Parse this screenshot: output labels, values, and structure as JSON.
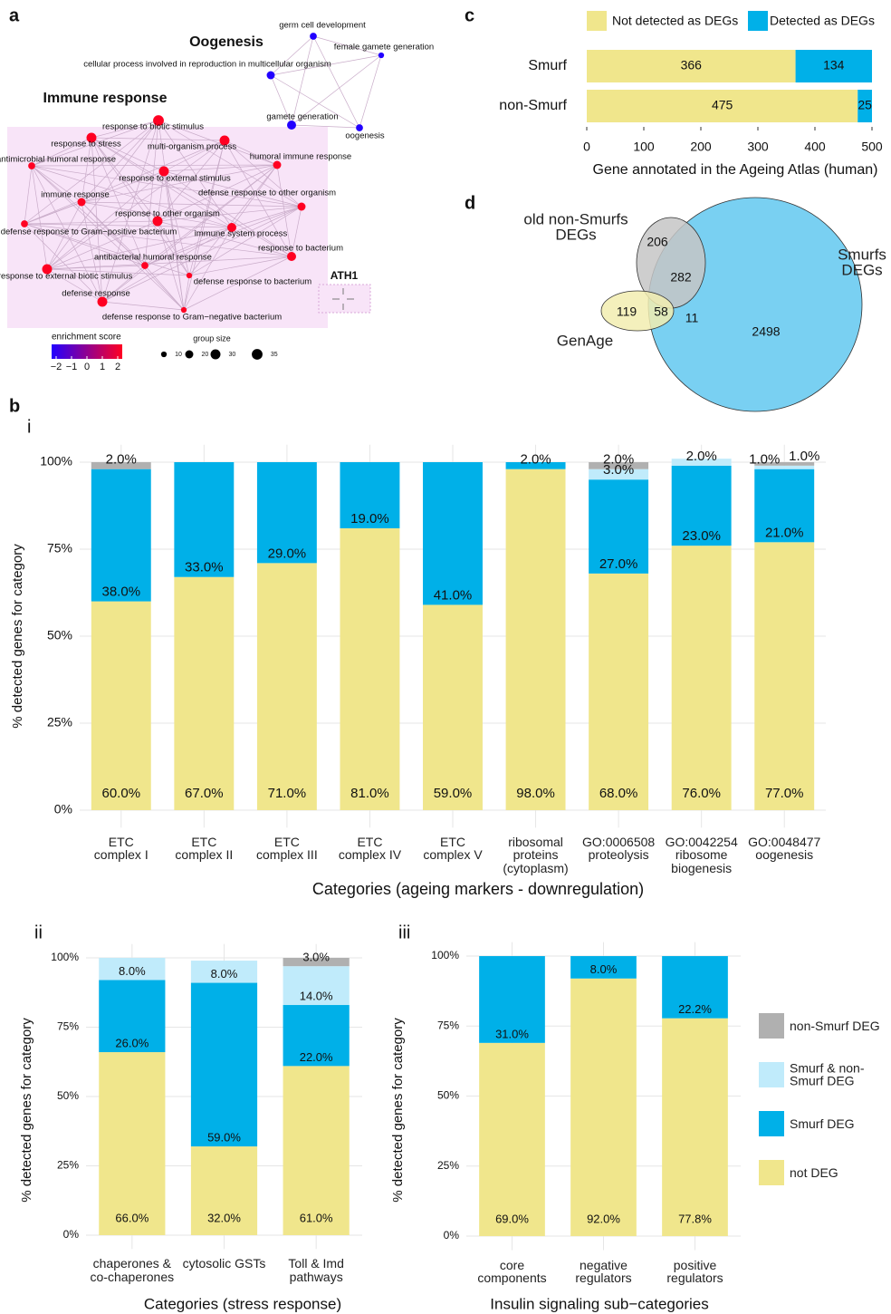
{
  "panel_group": "b",
  "chart_data": [
    {
      "type": "network",
      "panel": "a",
      "clusters": [
        "Oogenesis",
        "Immune response",
        "ATH1"
      ],
      "nodes": [
        {
          "label": "germ cell development",
          "score": -2,
          "size": 15
        },
        {
          "label": "female gamete generation",
          "score": -2,
          "size": 10
        },
        {
          "label": "cellular process involved in reproduction in multicellular organism",
          "score": -2,
          "size": 20
        },
        {
          "label": "gamete generation",
          "score": -2,
          "size": 25
        },
        {
          "label": "oogenesis",
          "score": -2,
          "size": 15
        },
        {
          "label": "response to biotic stimulus",
          "score": 2,
          "size": 35
        },
        {
          "label": "response to stress",
          "score": 2,
          "size": 30
        },
        {
          "label": "multi-organism process",
          "score": 2,
          "size": 30
        },
        {
          "label": "antimicrobial humoral response",
          "score": 2,
          "size": 15
        },
        {
          "label": "humoral immune response",
          "score": 2,
          "size": 20
        },
        {
          "label": "response to external stimulus",
          "score": 2,
          "size": 30
        },
        {
          "label": "immune response",
          "score": 2,
          "size": 20
        },
        {
          "label": "defense response to other organism",
          "score": 2,
          "size": 20
        },
        {
          "label": "response to other organism",
          "score": 2,
          "size": 30
        },
        {
          "label": "immune system process",
          "score": 2,
          "size": 25
        },
        {
          "label": "defense response to Gram−positive bacterium",
          "score": 2,
          "size": 15
        },
        {
          "label": "response to bacterium",
          "score": 2,
          "size": 25
        },
        {
          "label": "antibacterial humoral response",
          "score": 2,
          "size": 15
        },
        {
          "label": "response to external biotic stimulus",
          "score": 2,
          "size": 30
        },
        {
          "label": "defense response to bacterium",
          "score": 2,
          "size": 10
        },
        {
          "label": "defense response",
          "score": 2,
          "size": 30
        },
        {
          "label": "defense response to Gram−negative bacterium",
          "score": 2,
          "size": 10
        }
      ],
      "color_title": "enrichment score",
      "colorlim": [
        -2,
        2
      ],
      "colors": [
        "#2200ff",
        "#ff0022"
      ],
      "color_ticks": [
        {
          "value": -2,
          "label": "−2"
        },
        {
          "value": -1,
          "label": "−1"
        },
        0,
        1,
        2
      ],
      "size_title": "group size",
      "size_ticks": [
        10,
        20,
        30,
        35
      ]
    },
    {
      "type": "hbar_stacked",
      "panel": "c",
      "categories": [
        "Smurf",
        "non-Smurf"
      ],
      "series": [
        {
          "name": "Not detected as DEGs",
          "color": "#f0e68c",
          "values": [
            366,
            475
          ]
        },
        {
          "name": "Detected as DEGs",
          "color": "#00b0e8",
          "values": [
            134,
            25
          ]
        }
      ],
      "xlim": [
        0,
        500
      ],
      "xticks": [
        0,
        100,
        200,
        300,
        400,
        500
      ],
      "xlabel": "Gene annotated in the Ageing Atlas (human)",
      "legend": "top"
    },
    {
      "type": "venn",
      "panel": "d",
      "sets": [
        "old non-Smurfs\nDEGs",
        "Smurfs\nDEGs",
        "GenAge"
      ],
      "set_colors": [
        "#c6c6c6",
        "#62c8f0",
        "#f2edb0"
      ],
      "values": [
        206,
        282,
        119,
        58,
        11,
        2498
      ]
    },
    {
      "type": "stacked_bar",
      "panel": "i",
      "categories": [
        "ETC\ncomplex I",
        "ETC\ncomplex II",
        "ETC\ncomplex III",
        "ETC\ncomplex IV",
        "ETC\ncomplex V",
        "ribosomal\nproteins\n(cytoplasm)",
        "GO:0006508\nproteolysis",
        "GO:0042254\nribosome\nbiogenesis",
        "GO:0048477\noogenesis"
      ],
      "series": [
        {
          "color": "#f0e68c",
          "values": [
            60,
            67,
            71,
            81,
            59,
            98,
            68,
            76,
            77
          ],
          "value_labels": [
            "60.0%",
            "67.0%",
            "71.0%",
            "81.0%",
            "59.0%",
            "98.0%",
            "68.0%",
            "76.0%",
            "77.0%"
          ]
        },
        {
          "color": "#00b0e8",
          "values": [
            38,
            33,
            29,
            19,
            41,
            2,
            27,
            23,
            21
          ],
          "value_labels": [
            "38.0%",
            "33.0%",
            "29.0%",
            "19.0%",
            "41.0%",
            "2.0%",
            "27.0%",
            "23.0%",
            "21.0%"
          ]
        },
        {
          "color": "#c0ebfb",
          "values": [
            null,
            null,
            null,
            null,
            null,
            null,
            3,
            2,
            1
          ],
          "value_labels": [
            null,
            null,
            null,
            null,
            null,
            null,
            "3.0%",
            "2.0%",
            "1.0%"
          ]
        },
        {
          "color": "#b0b0b0",
          "values": [
            2,
            null,
            null,
            null,
            null,
            null,
            2,
            null,
            1
          ],
          "value_labels": [
            "2.0%",
            null,
            null,
            null,
            null,
            null,
            "2.0%",
            null,
            "1.0%"
          ]
        }
      ],
      "ylim": [
        -5,
        105
      ],
      "yticks": [
        {
          "value": 0,
          "label": "0%"
        },
        {
          "value": 25,
          "label": "25%"
        },
        {
          "value": 50,
          "label": "50%"
        },
        {
          "value": 75,
          "label": "75%"
        },
        {
          "value": 100,
          "label": "100%"
        }
      ],
      "ylabel": "% detected genes for category",
      "xlabel": "Categories (ageing markers - downregulation)",
      "grid": true
    },
    {
      "type": "stacked_bar",
      "panel": "ii",
      "categories": [
        "chaperones &\nco-chaperones",
        "cytosolic GSTs",
        "Toll & Imd\npathways"
      ],
      "series": [
        {
          "color": "#f0e68c",
          "values": [
            66,
            32,
            61
          ],
          "value_labels": [
            "66.0%",
            "32.0%",
            "61.0%"
          ]
        },
        {
          "color": "#00b0e8",
          "values": [
            26,
            59,
            22
          ],
          "value_labels": [
            "26.0%",
            "59.0%",
            "22.0%"
          ]
        },
        {
          "color": "#c0ebfb",
          "values": [
            8,
            8,
            14
          ],
          "value_labels": [
            "8.0%",
            "8.0%",
            "14.0%"
          ]
        },
        {
          "color": "#b0b0b0",
          "values": [
            null,
            null,
            3
          ],
          "value_labels": [
            null,
            null,
            "3.0%"
          ]
        }
      ],
      "ylim": [
        -5,
        105
      ],
      "yticks": [
        {
          "value": 0,
          "label": "0%"
        },
        {
          "value": 25,
          "label": "25%"
        },
        {
          "value": 50,
          "label": "50%"
        },
        {
          "value": 75,
          "label": "75%"
        },
        {
          "value": 100,
          "label": "100%"
        }
      ],
      "ylabel": "% detected genes for category",
      "xlabel": "Categories (stress response)",
      "grid": true
    },
    {
      "type": "stacked_bar",
      "panel": "iii",
      "categories": [
        "core\ncomponents",
        "negative\nregulators",
        "positive\nregulators"
      ],
      "series": [
        {
          "name": "not DEG",
          "color": "#f0e68c",
          "values": [
            69,
            92,
            77.8
          ],
          "value_labels": [
            "69.0%",
            "92.0%",
            "77.8%"
          ]
        },
        {
          "name": "Smurf DEG",
          "color": "#00b0e8",
          "values": [
            31,
            8,
            22.2
          ],
          "value_labels": [
            "31.0%",
            "8.0%",
            "22.2%"
          ]
        },
        {
          "name": "Smurf & non-Smurf DEG",
          "color": "#c0ebfb",
          "values": [
            null,
            null,
            null
          ],
          "value_labels": [
            null,
            null,
            null
          ]
        },
        {
          "name": "non-Smurf DEG",
          "color": "#b0b0b0",
          "values": [
            null,
            null,
            null
          ],
          "value_labels": [
            null,
            null,
            null
          ]
        }
      ],
      "ylim": [
        -5,
        105
      ],
      "yticks": [
        {
          "value": 0,
          "label": "0%"
        },
        {
          "value": 25,
          "label": "25%"
        },
        {
          "value": 50,
          "label": "50%"
        },
        {
          "value": 75,
          "label": "75%"
        },
        {
          "value": 100,
          "label": "100%"
        }
      ],
      "ylabel": "% detected genes for category",
      "xlabel": "Insulin signaling sub−categories",
      "grid": true,
      "legend": "right"
    }
  ]
}
